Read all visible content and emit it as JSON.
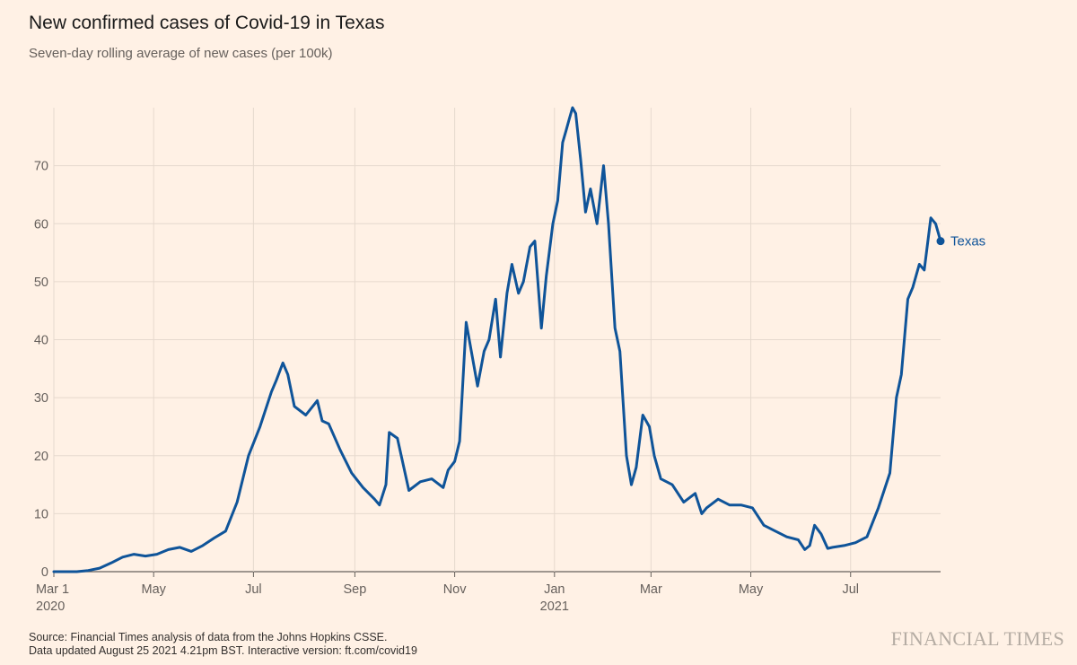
{
  "header": {
    "title": "New confirmed cases of Covid-19 in Texas",
    "subtitle": "Seven-day rolling average of new cases (per 100k)"
  },
  "footer": {
    "source_line1": "Source: Financial Times analysis of data from the Johns Hopkins CSSE.",
    "source_line2": "Data updated August 25 2021 4.21pm BST. Interactive version: ft.com/covid19",
    "logo_text": "FINANCIAL TIMES"
  },
  "chart_data": {
    "type": "line",
    "title": "New confirmed cases of Covid-19 in Texas",
    "subtitle": "Seven-day rolling average of new cases (per 100k)",
    "xlabel": "",
    "ylabel": "",
    "xlim": [
      "2020-03-01",
      "2021-08-25"
    ],
    "ylim": [
      0,
      80
    ],
    "yticks": [
      0,
      10,
      20,
      30,
      40,
      50,
      60,
      70
    ],
    "xticks": [
      {
        "date": "2020-03-01",
        "label": "Mar 1",
        "sublabel": "2020"
      },
      {
        "date": "2020-05-01",
        "label": "May"
      },
      {
        "date": "2020-07-01",
        "label": "Jul"
      },
      {
        "date": "2020-09-01",
        "label": "Sep"
      },
      {
        "date": "2020-11-01",
        "label": "Nov"
      },
      {
        "date": "2021-01-01",
        "label": "Jan",
        "sublabel": "2021"
      },
      {
        "date": "2021-03-01",
        "label": "Mar"
      },
      {
        "date": "2021-05-01",
        "label": "May"
      },
      {
        "date": "2021-07-01",
        "label": "Jul"
      }
    ],
    "grid": true,
    "colors": {
      "line": "#0F5499",
      "grid": "#E6D9CE",
      "axis": "#66605C",
      "background": "#FFF1E5"
    },
    "series": [
      {
        "name": "Texas",
        "x": [
          "2020-03-01",
          "2020-03-08",
          "2020-03-15",
          "2020-03-22",
          "2020-03-29",
          "2020-04-05",
          "2020-04-12",
          "2020-04-19",
          "2020-04-26",
          "2020-05-03",
          "2020-05-10",
          "2020-05-17",
          "2020-05-24",
          "2020-05-31",
          "2020-06-07",
          "2020-06-14",
          "2020-06-21",
          "2020-06-28",
          "2020-07-05",
          "2020-07-12",
          "2020-07-15",
          "2020-07-19",
          "2020-07-22",
          "2020-07-26",
          "2020-08-02",
          "2020-08-09",
          "2020-08-12",
          "2020-08-16",
          "2020-08-23",
          "2020-08-30",
          "2020-09-06",
          "2020-09-13",
          "2020-09-16",
          "2020-09-20",
          "2020-09-22",
          "2020-09-27",
          "2020-10-04",
          "2020-10-11",
          "2020-10-18",
          "2020-10-25",
          "2020-10-28",
          "2020-11-01",
          "2020-11-04",
          "2020-11-08",
          "2020-11-15",
          "2020-11-19",
          "2020-11-22",
          "2020-11-26",
          "2020-11-29",
          "2020-12-03",
          "2020-12-06",
          "2020-12-10",
          "2020-12-13",
          "2020-12-17",
          "2020-12-20",
          "2020-12-24",
          "2020-12-27",
          "2020-12-31",
          "2021-01-03",
          "2021-01-06",
          "2021-01-08",
          "2021-01-10",
          "2021-01-12",
          "2021-01-14",
          "2021-01-17",
          "2021-01-20",
          "2021-01-23",
          "2021-01-27",
          "2021-01-31",
          "2021-02-03",
          "2021-02-07",
          "2021-02-10",
          "2021-02-14",
          "2021-02-17",
          "2021-02-20",
          "2021-02-24",
          "2021-02-28",
          "2021-03-03",
          "2021-03-07",
          "2021-03-14",
          "2021-03-21",
          "2021-03-28",
          "2021-04-01",
          "2021-04-04",
          "2021-04-11",
          "2021-04-18",
          "2021-04-25",
          "2021-05-02",
          "2021-05-09",
          "2021-05-16",
          "2021-05-23",
          "2021-05-30",
          "2021-06-03",
          "2021-06-06",
          "2021-06-09",
          "2021-06-13",
          "2021-06-17",
          "2021-06-20",
          "2021-06-27",
          "2021-07-04",
          "2021-07-11",
          "2021-07-18",
          "2021-07-25",
          "2021-07-29",
          "2021-08-01",
          "2021-08-05",
          "2021-08-08",
          "2021-08-12",
          "2021-08-15",
          "2021-08-19",
          "2021-08-22",
          "2021-08-25"
        ],
        "values": [
          0,
          0,
          0,
          0.2,
          0.6,
          1.5,
          2.5,
          3.0,
          2.7,
          3.0,
          3.8,
          4.2,
          3.5,
          4.5,
          5.8,
          7.0,
          12.0,
          20.0,
          25.0,
          31.0,
          33.0,
          36.0,
          34.0,
          28.5,
          27.0,
          29.5,
          26.0,
          25.5,
          21.0,
          17.0,
          14.5,
          12.5,
          11.5,
          15.0,
          24.0,
          23.0,
          14.0,
          15.5,
          16.0,
          14.5,
          17.5,
          19.0,
          22.5,
          43.0,
          32.0,
          38.0,
          40.0,
          47.0,
          37.0,
          48.0,
          53.0,
          48.0,
          50.0,
          56.0,
          57.0,
          42.0,
          51.0,
          60.0,
          64.0,
          74.0,
          76.0,
          78.0,
          80.0,
          79.0,
          71.0,
          62.0,
          66.0,
          60.0,
          70.0,
          60.0,
          42.0,
          38.0,
          20.0,
          15.0,
          18.0,
          27.0,
          25.0,
          20.0,
          16.0,
          15.0,
          12.0,
          13.5,
          10.0,
          11.0,
          12.5,
          11.5,
          11.5,
          11.0,
          8.0,
          7.0,
          6.0,
          5.5,
          3.8,
          4.5,
          8.0,
          6.5,
          4.0,
          4.2,
          4.5,
          5.0,
          6.0,
          11.0,
          17.0,
          30.0,
          34.0,
          47.0,
          49.0,
          53.0,
          52.0,
          61.0,
          60.0,
          57.0
        ]
      }
    ]
  }
}
